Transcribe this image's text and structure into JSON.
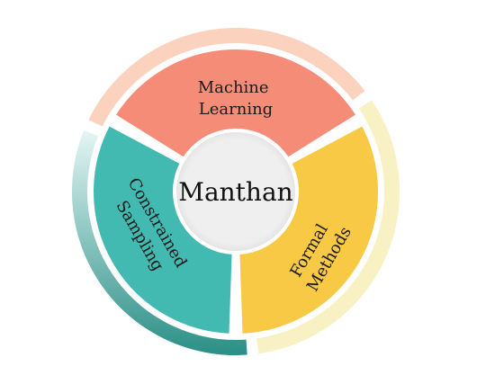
{
  "center": {
    "label": "Manthan"
  },
  "segments": [
    {
      "id": "machine-learning",
      "lines": [
        "Machine",
        "Learning"
      ],
      "fill": "#f58c78",
      "outer": "#fbd2bd"
    },
    {
      "id": "formal-methods",
      "lines": [
        "Formal",
        "Methods"
      ],
      "fill": "#f7c944",
      "outer": "#f8f1c4"
    },
    {
      "id": "constrained-sampling",
      "lines": [
        "Constrained",
        "Sampling"
      ],
      "fill": "#43bab1",
      "outer": "#2a9d92"
    }
  ],
  "colors": {
    "center_fill": "#eeeeee",
    "background": "#ffffff"
  }
}
